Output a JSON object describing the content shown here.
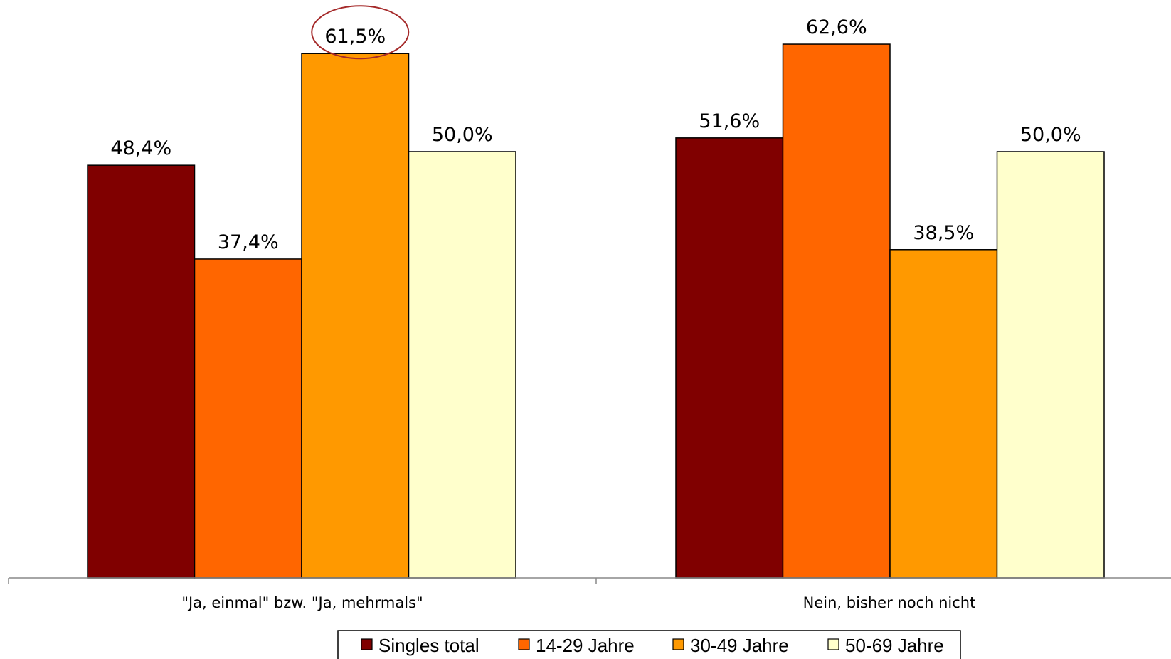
{
  "chart_data": {
    "type": "bar",
    "categories": [
      "\"Ja, einmal\" bzw. \"Ja, mehrmals\"",
      "Nein, bisher noch nicht"
    ],
    "series": [
      {
        "name": "Singles total",
        "color": "#800000",
        "values": [
          48.4,
          51.6
        ],
        "labels": [
          "48,4%",
          "51,6%"
        ]
      },
      {
        "name": "14-29 Jahre",
        "color": "#FF6600",
        "values": [
          37.4,
          62.6
        ],
        "labels": [
          "37,4%",
          "62,6%"
        ]
      },
      {
        "name": "30-49 Jahre",
        "color": "#FF9900",
        "values": [
          61.5,
          38.5
        ],
        "labels": [
          "61,5%",
          "38,5%"
        ]
      },
      {
        "name": "50-69 Jahre",
        "color": "#FFFFCC",
        "values": [
          50.0,
          50.0
        ],
        "labels": [
          "50,0%",
          "50,0%"
        ]
      }
    ],
    "highlight": {
      "series": 2,
      "category": 0,
      "color": "#A52A2A"
    },
    "ylim": [
      0,
      65
    ],
    "grid": false,
    "legend": "bottom",
    "title": "",
    "xlabel": "",
    "ylabel": ""
  }
}
